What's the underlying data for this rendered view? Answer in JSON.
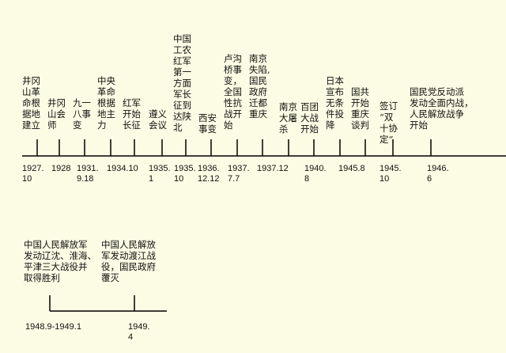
{
  "timelines": [
    {
      "events": [
        {
          "label": [
            "井冈",
            "山革",
            "命根",
            "据地",
            "建立"
          ],
          "date": [
            "1927.",
            "10"
          ]
        },
        {
          "label": [
            "井冈",
            "山会",
            "师"
          ],
          "date": [
            "1928"
          ]
        },
        {
          "label": [
            "九一",
            "八事",
            "变"
          ],
          "date": [
            "1931.",
            "9.18"
          ]
        },
        {
          "label": [
            "中央",
            "革命",
            "根据",
            "地主",
            "力"
          ],
          "date": [
            "1934.10"
          ]
        },
        {
          "label": [
            "红军",
            "开始",
            "长征"
          ]
        },
        {
          "label": [
            "遵义",
            "会议"
          ],
          "date": [
            "1935.",
            "1"
          ]
        },
        {
          "label": [
            "中国",
            "工农",
            "红军",
            "第一",
            "方面",
            "军长",
            "征到",
            "达陕",
            "北"
          ],
          "date": [
            "1935.",
            "10"
          ]
        },
        {
          "label": [
            "西安",
            "事变"
          ],
          "date": [
            "1936.",
            "12.12"
          ]
        },
        {
          "label": [
            "卢沟",
            "桥事",
            "变，",
            "全国",
            "性抗",
            "战开",
            "始"
          ],
          "date": [
            "1937.",
            "7.7"
          ]
        },
        {
          "label": [
            "南京",
            "失陷,",
            "国民",
            "政府",
            "迁都",
            "重庆"
          ],
          "date": [
            "1937.12"
          ]
        },
        {
          "label": [
            "南京",
            "大屠",
            "杀"
          ]
        },
        {
          "label": [
            "百团",
            "大战",
            "开始"
          ],
          "date": [
            "1940.",
            "8"
          ]
        },
        {
          "label": [
            "日本",
            "宣布",
            "无条",
            "件投",
            "降"
          ],
          "date": [
            "1945.8"
          ]
        },
        {
          "label": [
            "国共",
            "开始",
            "重庆",
            "谈判"
          ]
        },
        {
          "label": [
            "签订",
            "“双",
            "十协",
            "定“"
          ],
          "date": [
            "1945.",
            "10"
          ]
        },
        {
          "label": [
            "国民党反动派",
            "发动全面内战，",
            "人民解放战争",
            "开始"
          ],
          "date": [
            "1946.",
            "6"
          ]
        }
      ]
    },
    {
      "events": [
        {
          "label": [
            "中国人民解放军",
            "发动辽沈、淮海、",
            "平津三大战役并",
            "取得胜利"
          ],
          "date": [
            "1948.9-1949.1"
          ]
        },
        {
          "label": [
            "中国人民解放",
            "军发动渡江战",
            "役，国民政府",
            "覆灭"
          ],
          "date": [
            "1949.",
            "4"
          ]
        }
      ]
    }
  ]
}
